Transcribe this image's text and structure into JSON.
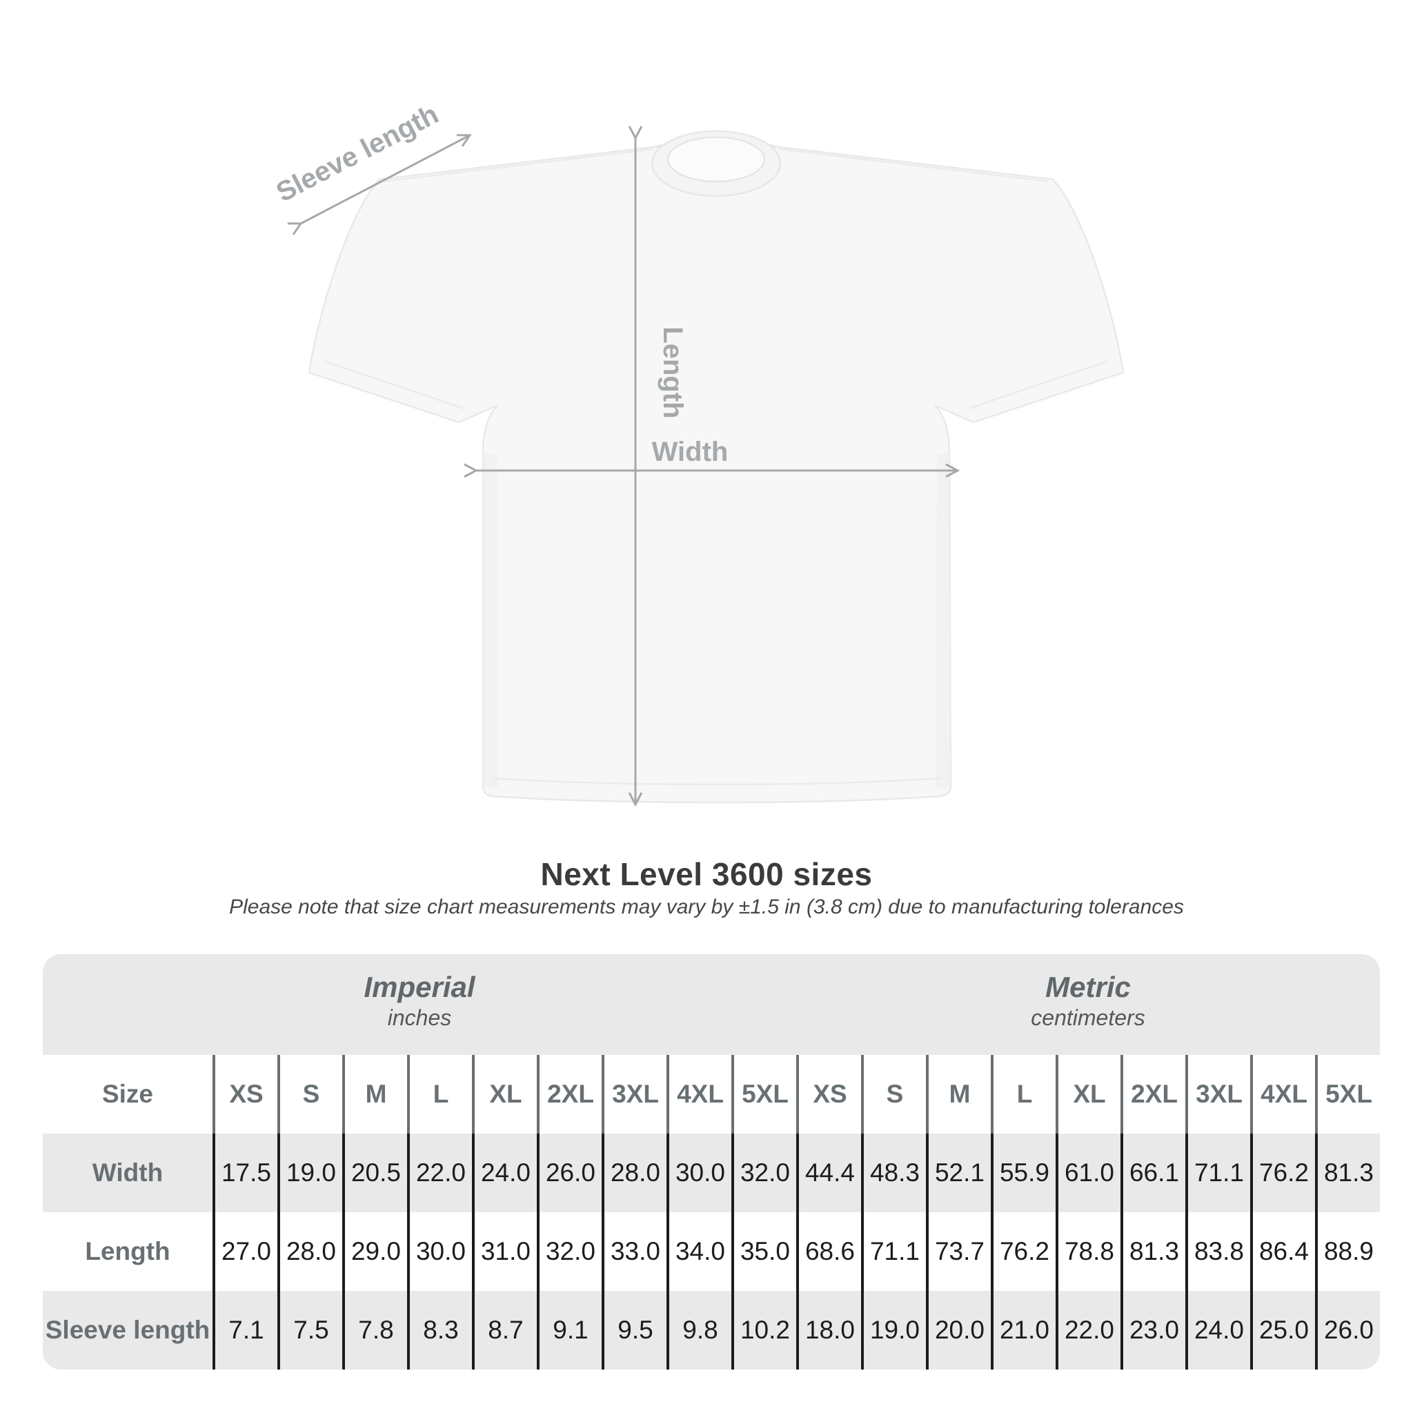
{
  "page": {
    "background": "#ffffff"
  },
  "diagram": {
    "annotation_color": "#a5a9ac",
    "labels": {
      "sleeve_length": "Sleeve length",
      "length": "Length",
      "width": "Width"
    }
  },
  "title": "Next Level 3600 sizes",
  "subtitle": "Please note that size chart measurements may vary by ±1.5 in (3.8 cm) due to manufacturing tolerances",
  "chart_data": {
    "type": "table",
    "title": "Next Level 3600 sizes",
    "note": "Please note that size chart measurements may vary by ±1.5 in (3.8 cm) due to manufacturing tolerances",
    "unit_groups": [
      {
        "name": "Imperial",
        "unit": "inches"
      },
      {
        "name": "Metric",
        "unit": "centimeters"
      }
    ],
    "corner_header": "Size",
    "column_headers": [
      "XS",
      "S",
      "M",
      "L",
      "XL",
      "2XL",
      "3XL",
      "4XL",
      "5XL",
      "XS",
      "S",
      "M",
      "L",
      "XL",
      "2XL",
      "3XL",
      "4XL",
      "5XL"
    ],
    "rows": [
      {
        "label": "Width",
        "values": [
          "17.5",
          "19.0",
          "20.5",
          "22.0",
          "24.0",
          "26.0",
          "28.0",
          "30.0",
          "32.0",
          "44.4",
          "48.3",
          "52.1",
          "55.9",
          "61.0",
          "66.1",
          "71.1",
          "76.2",
          "81.3"
        ]
      },
      {
        "label": "Length",
        "values": [
          "27.0",
          "28.0",
          "29.0",
          "30.0",
          "31.0",
          "32.0",
          "33.0",
          "34.0",
          "35.0",
          "68.6",
          "71.1",
          "73.7",
          "76.2",
          "78.8",
          "81.3",
          "83.8",
          "86.4",
          "88.9"
        ]
      },
      {
        "label": "Sleeve length",
        "values": [
          "7.1",
          "7.5",
          "7.8",
          "8.3",
          "8.7",
          "9.1",
          "9.5",
          "9.8",
          "10.2",
          "18.0",
          "19.0",
          "20.0",
          "21.0",
          "22.0",
          "23.0",
          "24.0",
          "25.0",
          "26.0"
        ]
      }
    ]
  }
}
